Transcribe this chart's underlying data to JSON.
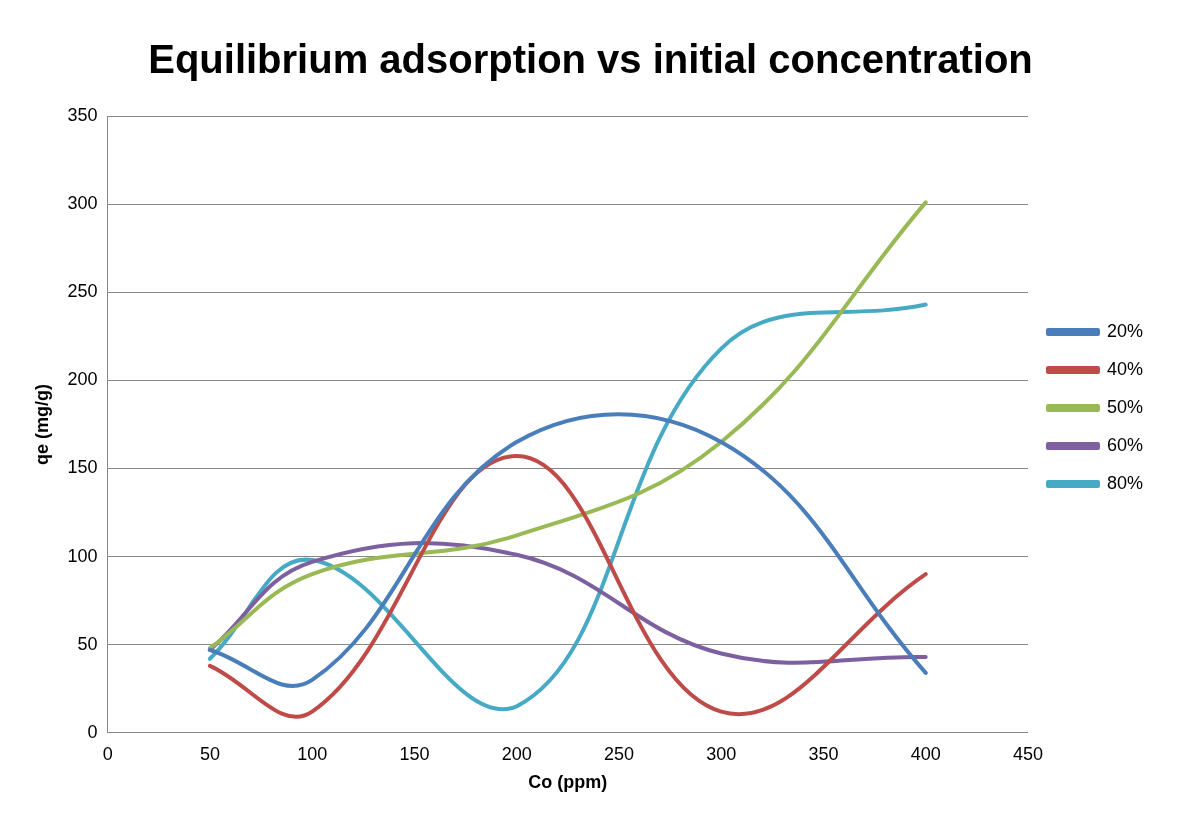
{
  "chart_data": {
    "type": "line",
    "title": "Equilibrium adsorption vs initial concentration",
    "xlabel": "Co (ppm)",
    "ylabel": "qe (mg/g)",
    "x": [
      50,
      100,
      200,
      300,
      400
    ],
    "series": [
      {
        "name": "20%",
        "color": "#4a7ebb",
        "values": [
          47,
          30,
          165,
          165,
          34
        ]
      },
      {
        "name": "40%",
        "color": "#be4b48",
        "values": [
          38,
          12,
          157,
          12,
          90
        ]
      },
      {
        "name": "50%",
        "color": "#98b954",
        "values": [
          48,
          90,
          112,
          165,
          301
        ]
      },
      {
        "name": "60%",
        "color": "#7d60a0",
        "values": [
          47,
          97,
          101,
          45,
          43
        ]
      },
      {
        "name": "80%",
        "color": "#46aac5",
        "values": [
          42,
          98,
          15,
          218,
          243
        ]
      }
    ],
    "xlim": [
      0,
      450
    ],
    "xticks": [
      0,
      50,
      100,
      150,
      200,
      250,
      300,
      350,
      400,
      450
    ],
    "ylim": [
      0,
      350
    ],
    "yticks": [
      0,
      50,
      100,
      150,
      200,
      250,
      300,
      350
    ],
    "grid": "y",
    "legend": "right",
    "marker": "none",
    "line_style": "solid"
  }
}
